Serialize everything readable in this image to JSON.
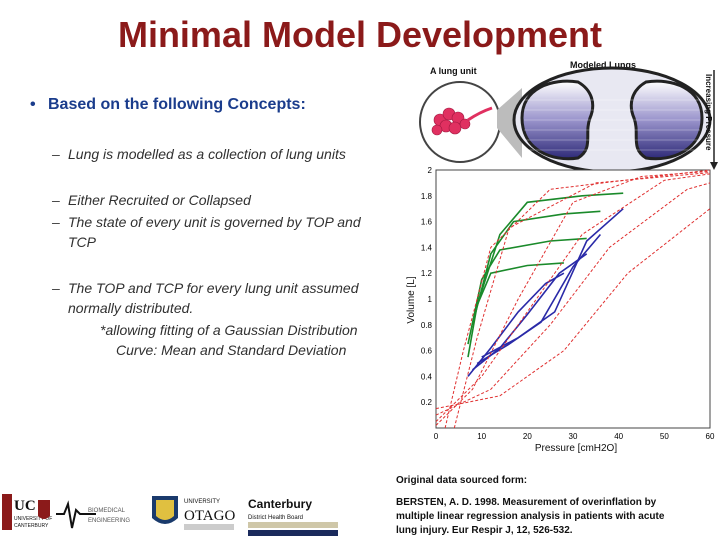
{
  "slide": {
    "title": "Minimal Model Development",
    "bullet": "Based on the following Concepts:",
    "subbullets": [
      "Lung is modelled as a collection of lung units",
      "Either Recruited or Collapsed",
      "The state of every unit is governed by TOP and TCP",
      "The TOP and TCP for every lung unit assumed normally distributed.",
      "*allowing fitting of a Gaussian Distribution",
      "Curve: Mean  and Standard Deviation"
    ],
    "source_heading": "Original data sourced form:",
    "citation": [
      "BERSTEN, A. D. 1998. Measurement of overinflation by",
      "multiple linear regression analysis in patients with acute",
      "lung injury. Eur Respir J, 12, 526-532."
    ]
  },
  "figure": {
    "lung_unit_label": "A lung unit",
    "modeled_lungs_label": "Modeled Lungs",
    "pressure_arrow_label": "Increasing Pressure"
  },
  "logos": {
    "uc": [
      "UC",
      "UNIVERSITY OF",
      "CANTERBURY"
    ],
    "biomed": [
      "BIOMEDICAL",
      "ENGINEERING"
    ],
    "otago": [
      "UNIVERSITY",
      "OTAGO"
    ],
    "canterbury_dhb": [
      "Canterbury",
      "District Health Board"
    ]
  },
  "chart_data": {
    "type": "line",
    "xlabel": "Pressure  [cmH2O]",
    "ylabel": "Volume [L]",
    "xlim": [
      0,
      60
    ],
    "ylim": [
      0,
      2
    ],
    "x_ticks": [
      0,
      10,
      20,
      30,
      40,
      50,
      60
    ],
    "y_ticks": [
      0.2,
      0.4,
      0.6,
      0.8,
      1,
      1.2,
      1.4,
      1.6,
      1.8,
      2
    ],
    "series": [
      {
        "style": "green",
        "points": [
          [
            7,
            0.55
          ],
          [
            9,
            0.95
          ],
          [
            12,
            1.2
          ],
          [
            20,
            1.26
          ],
          [
            28,
            1.28
          ]
        ]
      },
      {
        "style": "green",
        "points": [
          [
            7,
            0.65
          ],
          [
            10,
            1.15
          ],
          [
            14,
            1.38
          ],
          [
            25,
            1.45
          ],
          [
            33,
            1.47
          ]
        ]
      },
      {
        "style": "green",
        "points": [
          [
            8,
            0.8
          ],
          [
            12,
            1.35
          ],
          [
            17,
            1.6
          ],
          [
            28,
            1.66
          ],
          [
            36,
            1.68
          ]
        ]
      },
      {
        "style": "green",
        "points": [
          [
            9,
            0.95
          ],
          [
            14,
            1.5
          ],
          [
            20,
            1.75
          ],
          [
            32,
            1.8
          ],
          [
            41,
            1.82
          ]
        ]
      },
      {
        "style": "blue",
        "points": [
          [
            7,
            0.4
          ],
          [
            12,
            0.62
          ],
          [
            18,
            0.9
          ],
          [
            24,
            1.12
          ],
          [
            28,
            1.2
          ]
        ]
      },
      {
        "style": "blue",
        "points": [
          [
            8,
            0.45
          ],
          [
            14,
            0.62
          ],
          [
            20,
            0.88
          ],
          [
            27,
            1.2
          ],
          [
            33,
            1.35
          ]
        ]
      },
      {
        "style": "blue",
        "points": [
          [
            9,
            0.5
          ],
          [
            16,
            0.65
          ],
          [
            23,
            0.82
          ],
          [
            30,
            1.25
          ],
          [
            36,
            1.5
          ]
        ]
      },
      {
        "style": "blue",
        "points": [
          [
            10,
            0.55
          ],
          [
            18,
            0.7
          ],
          [
            26,
            0.9
          ],
          [
            33,
            1.45
          ],
          [
            41,
            1.7
          ]
        ]
      },
      {
        "style": "red-dashed",
        "points": [
          [
            0,
            0.02
          ],
          [
            8,
            0.3
          ],
          [
            18,
            1.0
          ],
          [
            30,
            1.75
          ],
          [
            45,
            1.95
          ],
          [
            60,
            1.99
          ]
        ]
      },
      {
        "style": "red-dashed",
        "points": [
          [
            0,
            0.05
          ],
          [
            10,
            0.4
          ],
          [
            20,
            0.9
          ],
          [
            32,
            1.5
          ],
          [
            50,
            1.92
          ],
          [
            60,
            1.97
          ]
        ]
      },
      {
        "style": "red-dashed",
        "points": [
          [
            0,
            0.1
          ],
          [
            12,
            0.3
          ],
          [
            25,
            0.8
          ],
          [
            38,
            1.4
          ],
          [
            55,
            1.85
          ],
          [
            60,
            1.9
          ]
        ]
      },
      {
        "style": "red-dashed",
        "points": [
          [
            0,
            0.15
          ],
          [
            14,
            0.25
          ],
          [
            28,
            0.6
          ],
          [
            42,
            1.2
          ],
          [
            60,
            1.7
          ]
        ]
      },
      {
        "style": "red-dashed",
        "points": [
          [
            2,
            0.0
          ],
          [
            6,
            0.6
          ],
          [
            12,
            1.4
          ],
          [
            25,
            1.85
          ],
          [
            60,
            2.0
          ]
        ]
      },
      {
        "style": "red-dashed",
        "points": [
          [
            4,
            0.0
          ],
          [
            9,
            0.7
          ],
          [
            16,
            1.55
          ],
          [
            35,
            1.9
          ],
          [
            60,
            1.98
          ]
        ]
      }
    ]
  }
}
